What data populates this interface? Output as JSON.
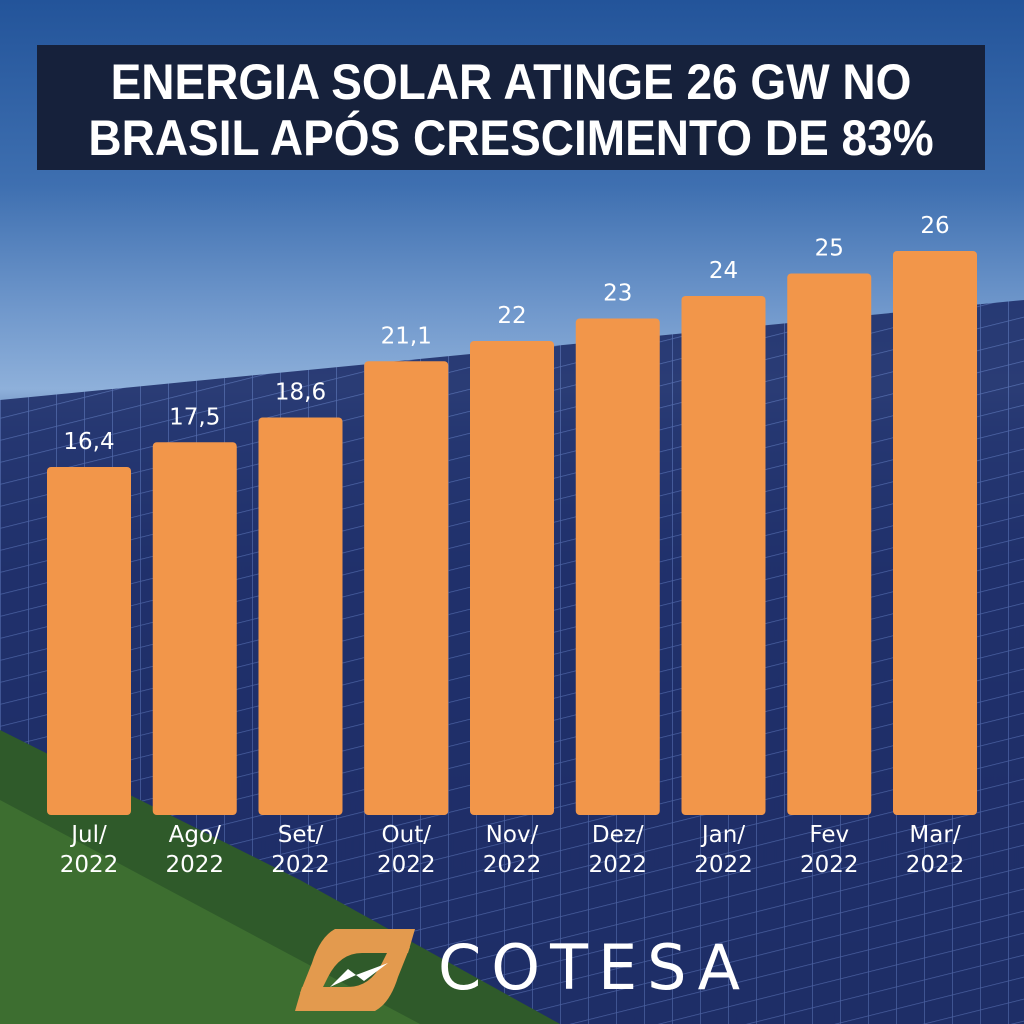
{
  "title": {
    "line1": "ENERGIA SOLAR ATINGE 26 GW NO",
    "line2": "BRASIL APÓS CRESCIMENTO DE 83%"
  },
  "colors": {
    "bar": "#f2964a",
    "title_bg": "#16213b",
    "text": "#ffffff",
    "logo_accent": "#e39a4e"
  },
  "chart_data": {
    "type": "bar",
    "title": "ENERGIA SOLAR ATINGE 26 GW NO BRASIL APÓS CRESCIMENTO DE 83%",
    "unit": "GW",
    "categories": [
      [
        "Jul/",
        "2022"
      ],
      [
        "Ago/",
        "2022"
      ],
      [
        "Set/",
        "2022"
      ],
      [
        "Out/",
        "2022"
      ],
      [
        "Nov/",
        "2022"
      ],
      [
        "Dez/",
        "2022"
      ],
      [
        "Jan/",
        "2022"
      ],
      [
        "Fev",
        "2022"
      ],
      [
        "Mar/",
        "2022"
      ]
    ],
    "values": [
      16.4,
      17.5,
      18.6,
      21.1,
      22,
      23,
      24,
      25,
      26
    ],
    "data_labels": [
      "16,4",
      "17,5",
      "18,6",
      "21,1",
      "22",
      "23",
      "24",
      "25",
      "26"
    ],
    "xlabel": "",
    "ylabel": "",
    "grid": false,
    "legend": "none"
  },
  "logo": {
    "text": "COTESA",
    "icon": "lightning-leaf-icon"
  }
}
